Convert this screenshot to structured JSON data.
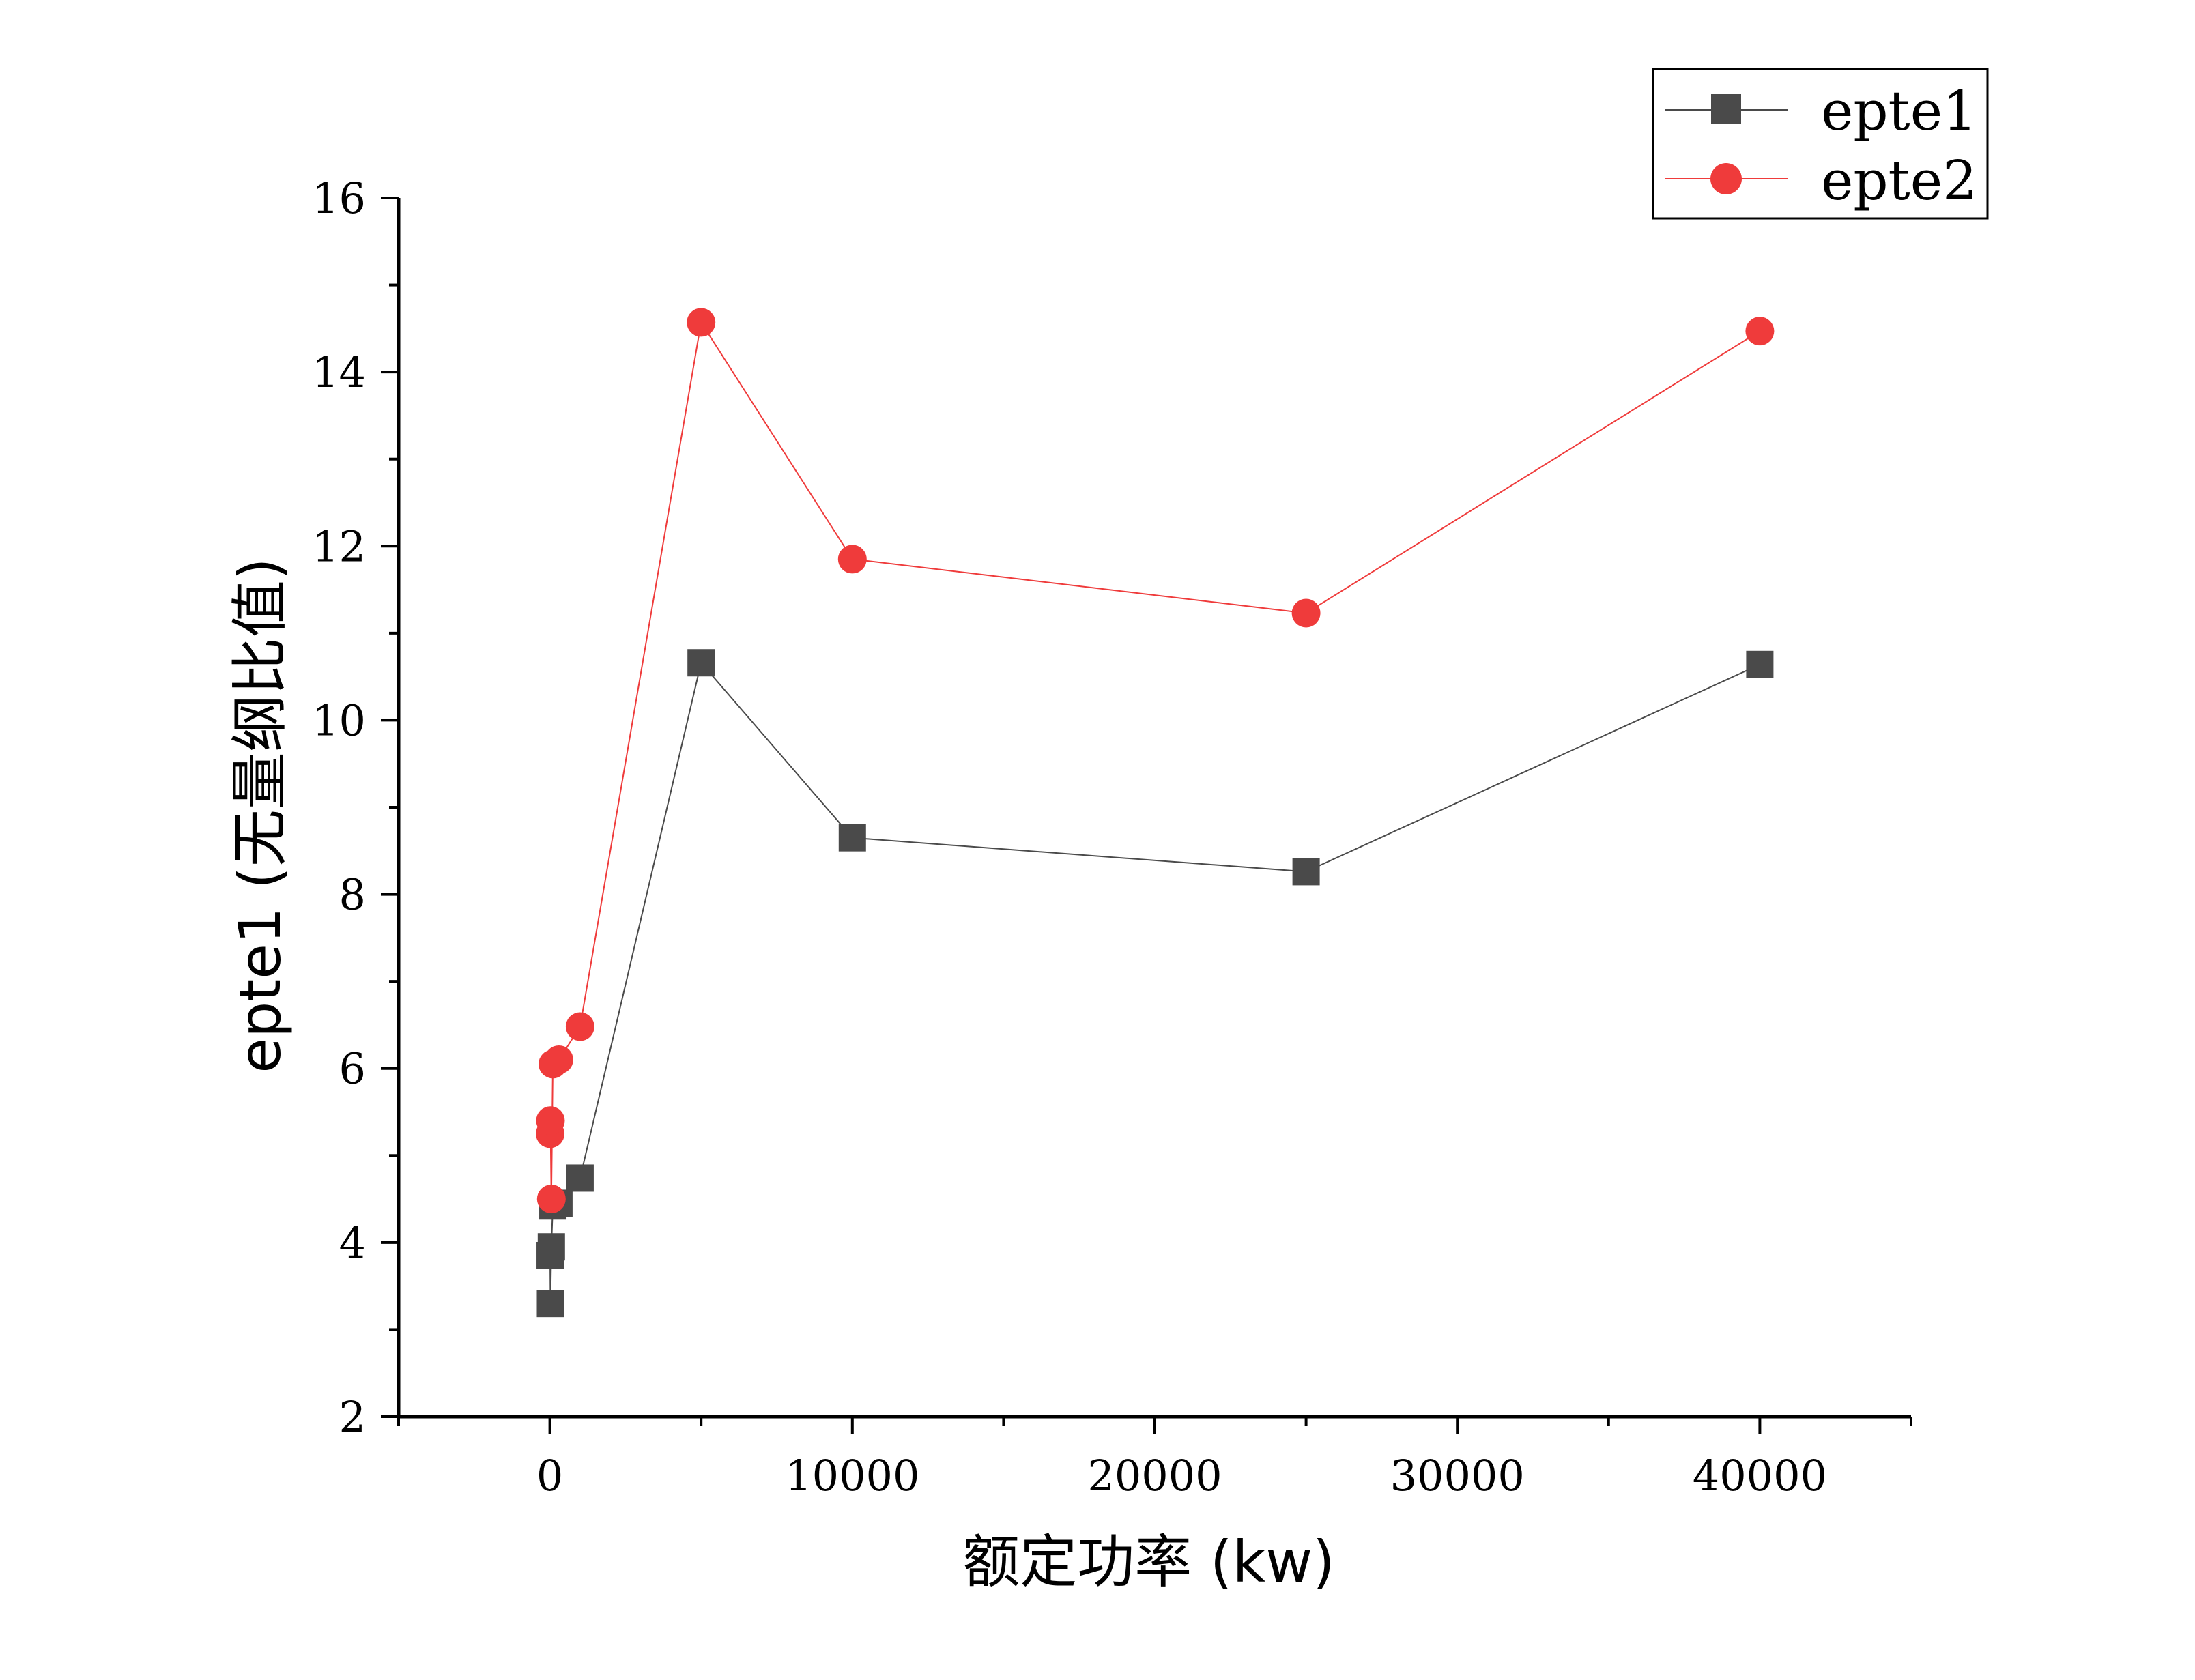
{
  "chart_data": {
    "type": "line",
    "title": "",
    "xlabel": "额定功率 (kw)",
    "ylabel": "epte1 (无量纲比值)",
    "xlim": [
      -5000,
      45000
    ],
    "ylim": [
      2,
      16
    ],
    "x_ticks": [
      0,
      10000,
      20000,
      30000,
      40000
    ],
    "x_tick_labels": [
      "0",
      "10000",
      "20000",
      "30000",
      "40000"
    ],
    "y_ticks": [
      2,
      4,
      6,
      8,
      10,
      12,
      14,
      16
    ],
    "y_tick_labels": [
      "2",
      "4",
      "6",
      "8",
      "10",
      "12",
      "14",
      "16"
    ],
    "grid": false,
    "legend_position": "top-right",
    "series": [
      {
        "name": "epte1",
        "color": "#4a4a4a",
        "marker": "square",
        "x": [
          10,
          20,
          50,
          100,
          300,
          1000,
          5000,
          10000,
          25000,
          40000
        ],
        "y": [
          3.85,
          3.3,
          3.95,
          4.42,
          4.45,
          4.74,
          10.66,
          8.65,
          8.26,
          10.64
        ]
      },
      {
        "name": "epte2",
        "color": "#ef3b3b",
        "marker": "circle",
        "x": [
          10,
          20,
          50,
          100,
          300,
          1000,
          5000,
          10000,
          25000,
          40000
        ],
        "y": [
          5.25,
          5.4,
          4.5,
          6.05,
          6.1,
          6.48,
          14.57,
          11.85,
          11.23,
          14.47
        ]
      }
    ]
  }
}
